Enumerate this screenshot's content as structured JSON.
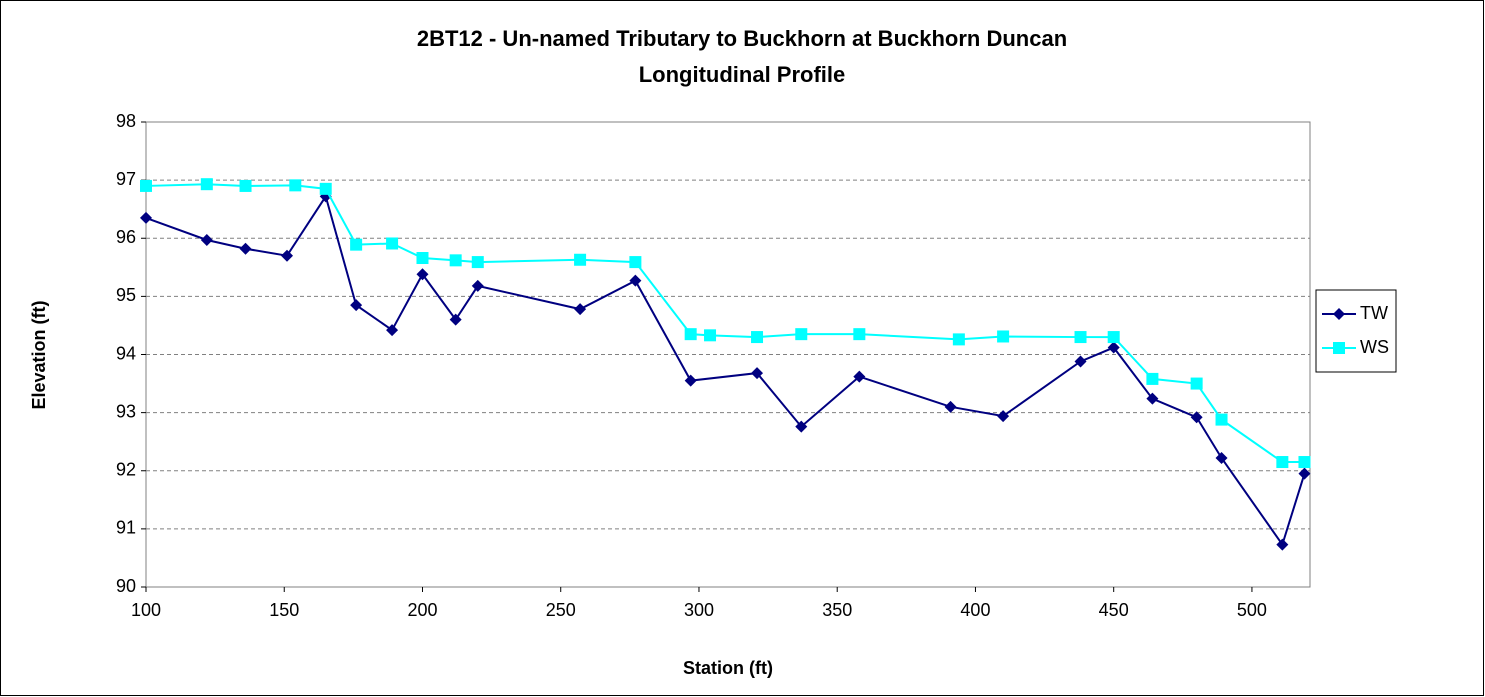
{
  "chart_data": {
    "type": "line",
    "title": "2BT12 - Un-named Tributary to Buckhorn at Buckhorn Duncan",
    "subtitle": "Longitudinal Profile",
    "x_label": "Station (ft)",
    "y_label": "Elevation (ft)",
    "xlim": [
      100,
      521
    ],
    "xticks": [
      100,
      150,
      200,
      250,
      300,
      350,
      400,
      450,
      500
    ],
    "ylim": [
      90,
      98
    ],
    "yticks": [
      90,
      91,
      92,
      93,
      94,
      95,
      96,
      97,
      98
    ],
    "grid": true,
    "legend": "right",
    "series": [
      {
        "name": "TW",
        "color": "#000080",
        "marker": "diamond",
        "x": [
          100,
          122,
          136,
          151,
          165,
          176,
          189,
          200,
          212,
          220,
          257,
          277,
          297,
          321,
          337,
          358,
          391,
          410,
          438,
          450,
          464,
          480,
          489,
          511,
          519
        ],
        "values": [
          96.35,
          95.97,
          95.82,
          95.7,
          96.72,
          94.85,
          94.42,
          95.38,
          94.6,
          95.18,
          94.78,
          95.27,
          93.55,
          93.68,
          92.76,
          93.62,
          93.1,
          92.94,
          93.88,
          94.12,
          93.24,
          92.92,
          92.22,
          90.73,
          91.95
        ]
      },
      {
        "name": "WS",
        "color": "#00FFFF",
        "marker": "square",
        "x": [
          100,
          122,
          136,
          154,
          165,
          176,
          189,
          200,
          212,
          220,
          257,
          277,
          297,
          304,
          321,
          337,
          358,
          394,
          410,
          438,
          450,
          464,
          480,
          489,
          511,
          519
        ],
        "values": [
          96.9,
          96.93,
          96.9,
          96.91,
          96.85,
          95.89,
          95.91,
          95.66,
          95.62,
          95.59,
          95.63,
          95.59,
          94.35,
          94.33,
          94.3,
          94.35,
          94.35,
          94.26,
          94.31,
          94.3,
          94.3,
          93.58,
          93.5,
          92.88,
          92.15,
          92.15
        ]
      }
    ]
  }
}
